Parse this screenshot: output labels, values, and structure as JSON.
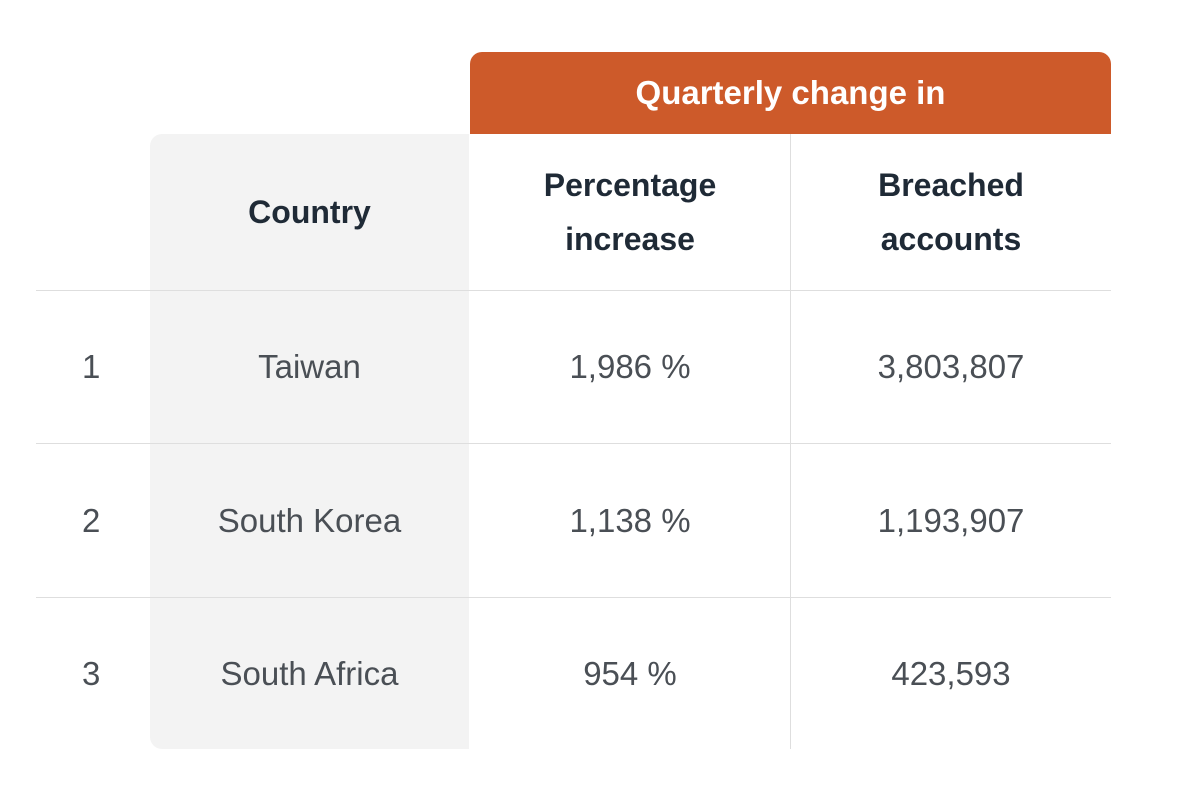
{
  "table": {
    "group_header": "Quarterly change in",
    "headers": {
      "country": "Country",
      "percentage": "Percentage increase",
      "breached": "Breached accounts"
    },
    "rows": [
      {
        "rank": "1",
        "country": "Taiwan",
        "percentage": "1,986 %",
        "breached": "3,803,807"
      },
      {
        "rank": "2",
        "country": "South Korea",
        "percentage": "1,138 %",
        "breached": "1,193,907"
      },
      {
        "rank": "3",
        "country": "South Africa",
        "percentage": "954 %",
        "breached": "423,593"
      }
    ],
    "colors": {
      "accent": "#cd5a2a",
      "country_column_bg": "#f3f3f3",
      "divider": "#dedede"
    }
  }
}
